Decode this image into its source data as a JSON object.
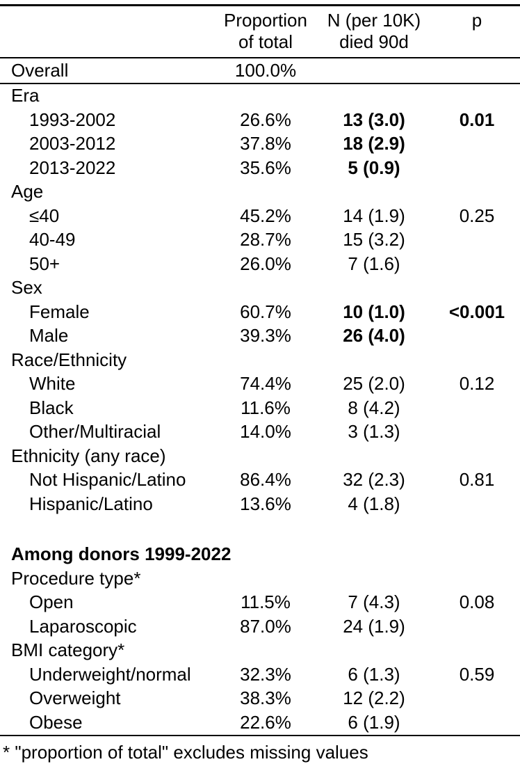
{
  "colors": {
    "text": "#000000",
    "background": "#ffffff",
    "rule": "#000000"
  },
  "table": {
    "header": {
      "label": "",
      "percent_line1": "Proportion",
      "percent_line2": "of total",
      "n_line1": "N (per 10K)",
      "n_line2": "died 90d",
      "p": "p"
    },
    "rows": [
      {
        "type": "data",
        "label": "Overall",
        "indent": false,
        "percent": "100.0%",
        "n": "",
        "p": "",
        "n_bold": false,
        "p_bold": false,
        "rule_below": true
      },
      {
        "type": "section",
        "label": "Era"
      },
      {
        "type": "data",
        "label": "1993-2002",
        "indent": true,
        "percent": "26.6%",
        "n": "13 (3.0)",
        "p": "0.01",
        "n_bold": true,
        "p_bold": true
      },
      {
        "type": "data",
        "label": "2003-2012",
        "indent": true,
        "percent": "37.8%",
        "n": "18 (2.9)",
        "p": "",
        "n_bold": true,
        "p_bold": false
      },
      {
        "type": "data",
        "label": "2013-2022",
        "indent": true,
        "percent": "35.6%",
        "n": "5 (0.9)",
        "p": "",
        "n_bold": true,
        "p_bold": false
      },
      {
        "type": "section",
        "label": "Age"
      },
      {
        "type": "data",
        "label": "≤40",
        "indent": true,
        "percent": "45.2%",
        "n": "14 (1.9)",
        "p": "0.25",
        "n_bold": false,
        "p_bold": false
      },
      {
        "type": "data",
        "label": "40-49",
        "indent": true,
        "percent": "28.7%",
        "n": "15 (3.2)",
        "p": "",
        "n_bold": false,
        "p_bold": false
      },
      {
        "type": "data",
        "label": "50+",
        "indent": true,
        "percent": "26.0%",
        "n": "7 (1.6)",
        "p": "",
        "n_bold": false,
        "p_bold": false
      },
      {
        "type": "section",
        "label": "Sex"
      },
      {
        "type": "data",
        "label": "Female",
        "indent": true,
        "percent": "60.7%",
        "n": "10 (1.0)",
        "p": "<0.001",
        "n_bold": true,
        "p_bold": true
      },
      {
        "type": "data",
        "label": "Male",
        "indent": true,
        "percent": "39.3%",
        "n": "26 (4.0)",
        "p": "",
        "n_bold": true,
        "p_bold": false
      },
      {
        "type": "section",
        "label": "Race/Ethnicity"
      },
      {
        "type": "data",
        "label": "White",
        "indent": true,
        "percent": "74.4%",
        "n": "25 (2.0)",
        "p": "0.12",
        "n_bold": false,
        "p_bold": false
      },
      {
        "type": "data",
        "label": "Black",
        "indent": true,
        "percent": "11.6%",
        "n": "8 (4.2)",
        "p": "",
        "n_bold": false,
        "p_bold": false
      },
      {
        "type": "data",
        "label": "Other/Multiracial",
        "indent": true,
        "percent": "14.0%",
        "n": "3 (1.3)",
        "p": "",
        "n_bold": false,
        "p_bold": false
      },
      {
        "type": "section",
        "label": "Ethnicity (any race)"
      },
      {
        "type": "data",
        "label": "Not Hispanic/Latino",
        "indent": true,
        "percent": "86.4%",
        "n": "32 (2.3)",
        "p": "0.81",
        "n_bold": false,
        "p_bold": false
      },
      {
        "type": "data",
        "label": "Hispanic/Latino",
        "indent": true,
        "percent": "13.6%",
        "n": "4 (1.8)",
        "p": "",
        "n_bold": false,
        "p_bold": false
      },
      {
        "type": "spacer"
      },
      {
        "type": "section-bold",
        "label": "Among donors 1999-2022"
      },
      {
        "type": "section",
        "label": "Procedure type*"
      },
      {
        "type": "data",
        "label": "Open",
        "indent": true,
        "percent": "11.5%",
        "n": "7 (4.3)",
        "p": "0.08",
        "n_bold": false,
        "p_bold": false
      },
      {
        "type": "data",
        "label": "Laparoscopic",
        "indent": true,
        "percent": "87.0%",
        "n": "24 (1.9)",
        "p": "",
        "n_bold": false,
        "p_bold": false
      },
      {
        "type": "section",
        "label": "BMI category*"
      },
      {
        "type": "data",
        "label": "Underweight/normal",
        "indent": true,
        "percent": "32.3%",
        "n": "6 (1.3)",
        "p": "0.59",
        "n_bold": false,
        "p_bold": false
      },
      {
        "type": "data",
        "label": "Overweight",
        "indent": true,
        "percent": "38.3%",
        "n": "12 (2.2)",
        "p": "",
        "n_bold": false,
        "p_bold": false
      },
      {
        "type": "data",
        "label": "Obese",
        "indent": true,
        "percent": "22.6%",
        "n": "6 (1.9)",
        "p": "",
        "n_bold": false,
        "p_bold": false,
        "rule_below": true
      }
    ]
  },
  "footnote": "* \"proportion of total\" excludes missing values"
}
